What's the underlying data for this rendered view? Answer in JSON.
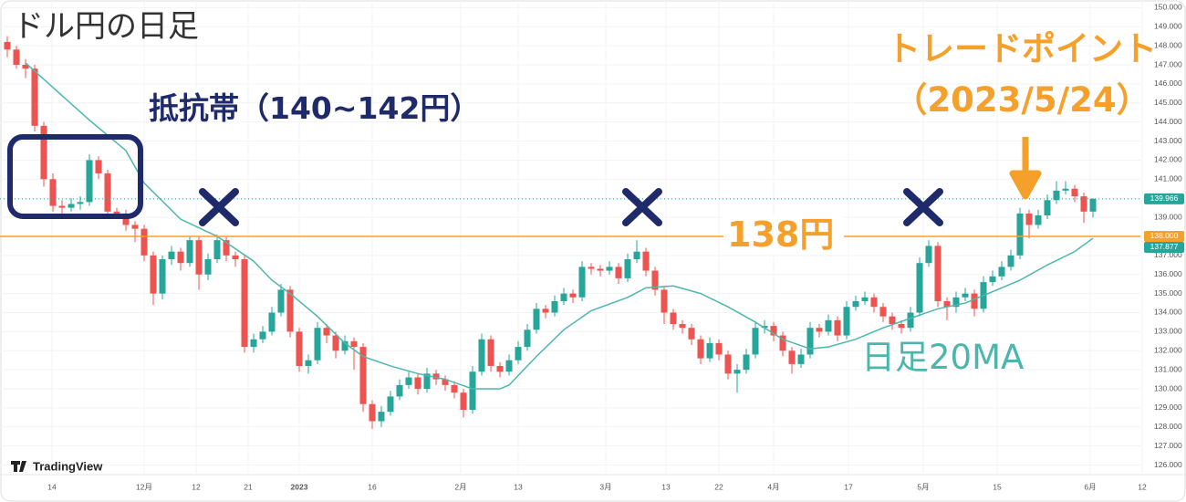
{
  "chart_data": {
    "type": "candlestick",
    "title": "ドル円の日足",
    "up_color": "#26a69a",
    "down_color": "#ef5350",
    "open": [
      148.2,
      147.8,
      147.0,
      146.8,
      143.8,
      141.0,
      139.6,
      139.5,
      139.7,
      139.8,
      142.0,
      141.3,
      139.3,
      139.2,
      138.6,
      138.4,
      137.0,
      135.0,
      136.8,
      137.2,
      136.6,
      137.8,
      136.0,
      136.8,
      137.8,
      137.0,
      136.8,
      132.2,
      132.6,
      133.0,
      134.0,
      135.2,
      133.0,
      131.2,
      131.5,
      133.2,
      132.8,
      132.0,
      132.5,
      132.2,
      129.2,
      128.3,
      128.8,
      129.6,
      130.2,
      130.6,
      130.0,
      130.8,
      130.5,
      130.2,
      129.8,
      128.9,
      130.9,
      132.6,
      131.2,
      130.9,
      131.5,
      132.2,
      133.1,
      134.2,
      134.0,
      134.6,
      135.0,
      134.8,
      136.4,
      136.3,
      136.2,
      136.4,
      135.8,
      136.8,
      137.2,
      136.2,
      135.2,
      134.0,
      133.4,
      133.2,
      132.6,
      131.6,
      132.4,
      131.8,
      130.8,
      131.0,
      131.8,
      133.2,
      133.3,
      132.8,
      132.0,
      131.3,
      131.8,
      133.2,
      133.0,
      133.6,
      132.8,
      134.3,
      134.6,
      134.8,
      134.3,
      133.8,
      133.4,
      133.2,
      134.0,
      136.6,
      137.5,
      134.6,
      134.3,
      134.8,
      135.0,
      134.2,
      135.6,
      135.9,
      136.4,
      137.0,
      139.2,
      138.6,
      139.1,
      139.9,
      140.4,
      140.5,
      140.1,
      139.3
    ],
    "high": [
      148.5,
      148.0,
      147.3,
      147.0,
      144.0,
      141.3,
      139.9,
      140.0,
      140.1,
      142.3,
      142.2,
      141.5,
      139.5,
      139.4,
      138.8,
      138.6,
      137.2,
      137.0,
      137.5,
      137.4,
      138.0,
      138.0,
      137.1,
      138.1,
      138.0,
      137.2,
      137.0,
      132.9,
      133.3,
      134.3,
      135.5,
      135.4,
      133.2,
      131.8,
      133.5,
      133.4,
      133.0,
      132.8,
      132.7,
      132.4,
      129.4,
      129.1,
      129.9,
      130.5,
      130.9,
      130.8,
      131.1,
      131.0,
      130.7,
      130.4,
      130.0,
      131.2,
      132.9,
      132.8,
      131.4,
      131.8,
      132.5,
      133.4,
      134.5,
      134.4,
      134.9,
      135.3,
      135.2,
      136.7,
      136.6,
      136.5,
      136.7,
      136.6,
      137.1,
      137.8,
      137.4,
      136.4,
      135.4,
      134.2,
      133.6,
      133.4,
      132.8,
      132.7,
      132.6,
      132.0,
      131.3,
      132.1,
      133.5,
      133.6,
      133.5,
      133.0,
      132.2,
      132.1,
      133.5,
      133.4,
      133.9,
      133.8,
      134.6,
      134.9,
      135.1,
      135.0,
      134.5,
      134.0,
      133.6,
      134.3,
      136.9,
      137.8,
      137.7,
      134.8,
      135.1,
      135.3,
      135.2,
      135.9,
      136.2,
      136.7,
      137.3,
      139.5,
      139.4,
      139.4,
      140.2,
      140.9,
      140.9,
      140.7,
      140.3,
      140.0
    ],
    "low": [
      147.4,
      146.8,
      146.3,
      143.5,
      140.6,
      139.3,
      139.2,
      139.3,
      139.4,
      139.6,
      141.0,
      139.0,
      138.9,
      138.3,
      137.7,
      136.7,
      134.4,
      134.7,
      136.5,
      136.2,
      136.4,
      135.2,
      135.7,
      136.6,
      136.7,
      136.4,
      131.9,
      131.9,
      132.4,
      132.8,
      133.8,
      132.7,
      130.9,
      130.8,
      131.3,
      132.4,
      131.6,
      131.8,
      131.0,
      128.8,
      127.9,
      128.0,
      128.6,
      129.4,
      130.0,
      129.7,
      129.8,
      130.2,
      129.9,
      129.5,
      128.5,
      128.7,
      130.7,
      130.9,
      130.6,
      130.7,
      131.3,
      132.0,
      132.9,
      133.7,
      133.8,
      134.4,
      134.5,
      134.6,
      136.0,
      135.9,
      136.0,
      135.5,
      135.6,
      136.6,
      135.9,
      134.9,
      133.4,
      133.1,
      132.9,
      132.3,
      131.3,
      131.4,
      131.5,
      130.5,
      129.8,
      130.8,
      131.6,
      132.9,
      132.5,
      131.7,
      130.8,
      131.1,
      131.6,
      132.7,
      132.8,
      132.5,
      132.6,
      134.1,
      134.4,
      134.0,
      133.5,
      133.1,
      132.9,
      133.0,
      133.8,
      136.4,
      134.3,
      133.6,
      134.0,
      134.6,
      133.8,
      134.0,
      135.4,
      135.7,
      136.2,
      136.8,
      137.9,
      138.4,
      138.9,
      139.7,
      140.2,
      139.8,
      138.7,
      139.0
    ],
    "close": [
      147.8,
      147.0,
      146.8,
      143.8,
      141.0,
      139.6,
      139.5,
      139.7,
      139.8,
      142.0,
      141.3,
      139.3,
      139.2,
      138.6,
      138.4,
      137.0,
      135.0,
      136.8,
      137.2,
      136.6,
      137.8,
      136.0,
      136.8,
      137.8,
      137.0,
      136.8,
      132.2,
      132.6,
      133.0,
      134.0,
      135.2,
      133.0,
      131.2,
      131.5,
      133.2,
      132.8,
      132.0,
      132.5,
      132.2,
      129.2,
      128.3,
      128.8,
      129.6,
      130.2,
      130.6,
      130.0,
      130.8,
      130.5,
      130.2,
      129.8,
      128.9,
      130.9,
      132.6,
      131.2,
      130.9,
      131.5,
      132.2,
      133.1,
      134.2,
      134.0,
      134.6,
      135.0,
      134.8,
      136.4,
      136.3,
      136.2,
      136.4,
      135.8,
      136.8,
      137.2,
      136.2,
      135.2,
      134.0,
      133.4,
      133.2,
      132.6,
      131.6,
      132.4,
      131.8,
      130.8,
      131.0,
      131.8,
      133.2,
      133.3,
      132.8,
      132.0,
      131.3,
      131.8,
      133.2,
      133.0,
      133.6,
      132.8,
      134.3,
      134.6,
      134.8,
      134.3,
      133.8,
      133.4,
      133.2,
      134.0,
      136.6,
      137.5,
      134.6,
      134.3,
      134.8,
      135.0,
      134.2,
      135.6,
      135.9,
      136.4,
      137.0,
      139.2,
      138.6,
      139.1,
      139.9,
      140.4,
      140.5,
      140.1,
      139.3,
      139.97
    ],
    "ma": {
      "name": "日足20MA",
      "color": "#4db6ac",
      "x": [
        2,
        9,
        13,
        15,
        19,
        23,
        27,
        29,
        31,
        34,
        37,
        39,
        42,
        45,
        48,
        51,
        54,
        55,
        58,
        61,
        64,
        68,
        70,
        73,
        76,
        79,
        82,
        85,
        88,
        90,
        93,
        96,
        99,
        102,
        105,
        108,
        111,
        114,
        117,
        119
      ],
      "values": [
        147.1,
        144.1,
        142.5,
        140.8,
        138.9,
        138,
        136.7,
        135.7,
        135.0,
        133.8,
        132.4,
        131.7,
        131.2,
        130.8,
        130.5,
        130,
        130,
        130.2,
        131.7,
        133.1,
        134.1,
        134.8,
        135.3,
        135.4,
        135.0,
        134.3,
        133.5,
        132.6,
        132.1,
        132.2,
        132.6,
        133.2,
        133.7,
        134.2,
        134.5,
        135.1,
        135.7,
        136.5,
        137.2,
        137.9
      ]
    },
    "xlim": [
      -0.8,
      124.2
    ],
    "xticks": [
      {
        "value": 4.9,
        "label": "14"
      },
      {
        "value": 15,
        "label": "12月"
      },
      {
        "value": 20.7,
        "label": "12"
      },
      {
        "value": 26.4,
        "label": "21"
      },
      {
        "value": 32,
        "label": "2023"
      },
      {
        "value": 40,
        "label": "16"
      },
      {
        "value": 49.7,
        "label": "2月"
      },
      {
        "value": 56,
        "label": "13"
      },
      {
        "value": 65.6,
        "label": "3月"
      },
      {
        "value": 72.2,
        "label": "13"
      },
      {
        "value": 78,
        "label": "22"
      },
      {
        "value": 84,
        "label": "4月"
      },
      {
        "value": 92.2,
        "label": "17"
      },
      {
        "value": 100.4,
        "label": "5月"
      },
      {
        "value": 108.5,
        "label": "15"
      },
      {
        "value": 118.7,
        "label": "6月"
      },
      {
        "value": 124.4,
        "label": "12"
      }
    ],
    "ylim": [
      125.5,
      150.4
    ],
    "yticks": [
      {
        "value": 126,
        "label": "126.000"
      },
      {
        "value": 127,
        "label": "127.000"
      },
      {
        "value": 128,
        "label": "128.000"
      },
      {
        "value": 129,
        "label": "129.000"
      },
      {
        "value": 130,
        "label": "130.000"
      },
      {
        "value": 131,
        "label": "131.000"
      },
      {
        "value": 132,
        "label": "132.000"
      },
      {
        "value": 133,
        "label": "133.000"
      },
      {
        "value": 134,
        "label": "134.000"
      },
      {
        "value": 135,
        "label": "135.000"
      },
      {
        "value": 136,
        "label": "136.000"
      },
      {
        "value": 137,
        "label": "137.000"
      },
      {
        "value": 138,
        "label": "138.000"
      },
      {
        "value": 139,
        "label": "139.000"
      },
      {
        "value": 140,
        "label": "140.000"
      },
      {
        "value": 141,
        "label": "141.000"
      },
      {
        "value": 142,
        "label": "142.000"
      },
      {
        "value": 143,
        "label": "143.000"
      },
      {
        "value": 144,
        "label": "144.000"
      },
      {
        "value": 145,
        "label": "145.000"
      },
      {
        "value": 146,
        "label": "146.000"
      },
      {
        "value": 147,
        "label": "147.000"
      },
      {
        "value": 148,
        "label": "148.000"
      },
      {
        "value": 149,
        "label": "149.000"
      },
      {
        "value": 150,
        "label": "150.000"
      }
    ],
    "levels": [
      {
        "value": 139.966,
        "label": "139.966",
        "color": "#26a69a",
        "style": "dotted"
      },
      {
        "value": 138,
        "label": "138.000",
        "color": "#f5a02a",
        "style": "solid"
      },
      {
        "value": 137.877,
        "label": "137.877",
        "color": "#26a69a",
        "style": "none"
      }
    ],
    "annotations": {
      "resistance": "抵抗帯（140~142円）",
      "trade_point": "トレードポイント",
      "trade_date": "（2023/5/24）",
      "level": "138円"
    },
    "logo": "TradingView"
  }
}
